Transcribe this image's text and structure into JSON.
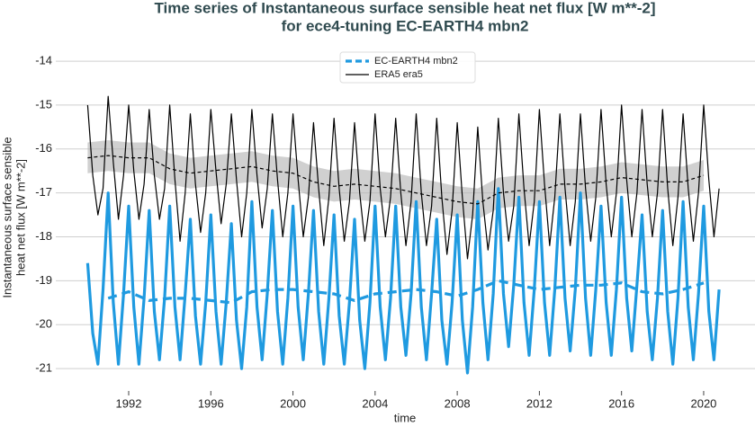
{
  "chart_data": {
    "type": "line",
    "title": [
      "Time series of Instantaneous surface sensible heat net flux [W m**-2]",
      "for ece4-tuning EC-EARTH4 mbn2"
    ],
    "xlabel": "time",
    "ylabel": [
      "Instantaneous surface sensible",
      "heat net flux [W m**-2]"
    ],
    "xlim": [
      1988.45,
      2022.5
    ],
    "ylim": [
      -21.51,
      -13.63
    ],
    "xticks": [
      1992,
      1996,
      2000,
      2004,
      2008,
      2012,
      2016,
      2020
    ],
    "yticks": [
      -21,
      -20,
      -19,
      -18,
      -17,
      -16,
      -15,
      -14
    ],
    "grid": true,
    "legend": "upper center",
    "x": [
      1990,
      1990.25,
      1990.5,
      1990.75,
      1991,
      1991.25,
      1991.5,
      1991.75,
      1992,
      1992.25,
      1992.5,
      1992.75,
      1993,
      1993.25,
      1993.5,
      1993.75,
      1994,
      1994.25,
      1994.5,
      1994.75,
      1995,
      1995.25,
      1995.5,
      1995.75,
      1996,
      1996.25,
      1996.5,
      1996.75,
      1997,
      1997.25,
      1997.5,
      1997.75,
      1998,
      1998.25,
      1998.5,
      1998.75,
      1999,
      1999.25,
      1999.5,
      1999.75,
      2000,
      2000.25,
      2000.5,
      2000.75,
      2001,
      2001.25,
      2001.5,
      2001.75,
      2002,
      2002.25,
      2002.5,
      2002.75,
      2003,
      2003.25,
      2003.5,
      2003.75,
      2004,
      2004.25,
      2004.5,
      2004.75,
      2005,
      2005.25,
      2005.5,
      2005.75,
      2006,
      2006.25,
      2006.5,
      2006.75,
      2007,
      2007.25,
      2007.5,
      2007.75,
      2008,
      2008.25,
      2008.5,
      2008.75,
      2009,
      2009.25,
      2009.5,
      2009.75,
      2010,
      2010.25,
      2010.5,
      2010.75,
      2011,
      2011.25,
      2011.5,
      2011.75,
      2012,
      2012.25,
      2012.5,
      2012.75,
      2013,
      2013.25,
      2013.5,
      2013.75,
      2014,
      2014.25,
      2014.5,
      2014.75,
      2015,
      2015.25,
      2015.5,
      2015.75,
      2016,
      2016.25,
      2016.5,
      2016.75,
      2017,
      2017.25,
      2017.5,
      2017.75,
      2018,
      2018.25,
      2018.5,
      2018.75,
      2019,
      2019.25,
      2019.5,
      2019.75,
      2020,
      2020.25,
      2020.5,
      2020.75
    ],
    "series": [
      {
        "name": "EC-EARTH4 mbn2",
        "color": "#1f9ae0",
        "width": 3.2,
        "legend_style": "dashed",
        "values": [
          -18.6,
          -20.2,
          -20.9,
          -19.2,
          -17.0,
          -19.5,
          -20.9,
          -19.3,
          -17.3,
          -19.6,
          -20.9,
          -19.4,
          -17.4,
          -19.7,
          -20.8,
          -19.4,
          -17.3,
          -19.6,
          -20.8,
          -19.3,
          -17.6,
          -19.8,
          -20.9,
          -19.5,
          -17.5,
          -19.7,
          -20.9,
          -19.5,
          -17.7,
          -19.9,
          -21.0,
          -19.6,
          -17.2,
          -19.6,
          -20.8,
          -19.3,
          -17.4,
          -19.7,
          -20.9,
          -19.4,
          -17.3,
          -19.6,
          -20.8,
          -19.3,
          -17.4,
          -19.7,
          -20.9,
          -19.4,
          -17.5,
          -19.8,
          -20.9,
          -19.5,
          -17.6,
          -19.9,
          -21.0,
          -19.5,
          -17.3,
          -19.6,
          -20.8,
          -19.4,
          -17.3,
          -19.6,
          -20.7,
          -19.3,
          -17.2,
          -19.6,
          -20.8,
          -19.3,
          -17.6,
          -19.9,
          -20.9,
          -19.5,
          -17.5,
          -19.9,
          -21.1,
          -19.6,
          -17.2,
          -19.5,
          -20.8,
          -19.3,
          -16.9,
          -19.3,
          -20.5,
          -19.1,
          -17.1,
          -19.5,
          -20.7,
          -19.2,
          -17.2,
          -19.5,
          -20.7,
          -19.2,
          -17.1,
          -19.4,
          -20.6,
          -19.2,
          -17.0,
          -19.4,
          -20.7,
          -19.2,
          -17.3,
          -19.5,
          -20.7,
          -19.2,
          -17.1,
          -19.4,
          -20.6,
          -19.1,
          -17.5,
          -19.7,
          -20.8,
          -19.4,
          -17.4,
          -19.7,
          -20.9,
          -19.4,
          -17.2,
          -19.6,
          -20.8,
          -19.3,
          -17.3,
          -19.7,
          -20.8,
          -19.2
        ],
        "mean": {
          "x": [
            1991,
            1992,
            1993,
            1994,
            1995,
            1996,
            1997,
            1998,
            1999,
            2000,
            2001,
            2002,
            2003,
            2004,
            2005,
            2006,
            2007,
            2008,
            2009,
            2010,
            2011,
            2012,
            2013,
            2014,
            2015,
            2016,
            2017,
            2018,
            2019,
            2020
          ],
          "values": [
            -19.4,
            -19.25,
            -19.45,
            -19.4,
            -19.4,
            -19.45,
            -19.5,
            -19.25,
            -19.2,
            -19.2,
            -19.25,
            -19.3,
            -19.45,
            -19.3,
            -19.25,
            -19.2,
            -19.25,
            -19.35,
            -19.2,
            -19.0,
            -19.1,
            -19.2,
            -19.15,
            -19.1,
            -19.1,
            -19.05,
            -19.25,
            -19.3,
            -19.2,
            -19.05
          ]
        }
      },
      {
        "name": "ERA5 era5",
        "color": "#000000",
        "width": 1.2,
        "legend_style": "solid",
        "values": [
          -15.0,
          -16.6,
          -17.5,
          -16.9,
          -14.8,
          -16.3,
          -17.6,
          -16.6,
          -15.0,
          -16.5,
          -17.6,
          -16.8,
          -15.1,
          -16.6,
          -17.6,
          -16.9,
          -15.0,
          -16.7,
          -18.1,
          -17.0,
          -15.2,
          -16.8,
          -17.9,
          -17.0,
          -15.1,
          -16.5,
          -17.7,
          -16.8,
          -15.2,
          -16.7,
          -18.0,
          -17.0,
          -15.1,
          -16.6,
          -17.8,
          -16.9,
          -15.2,
          -16.7,
          -18.0,
          -17.0,
          -15.2,
          -16.7,
          -18.0,
          -17.1,
          -15.4,
          -16.9,
          -18.2,
          -17.1,
          -15.3,
          -16.9,
          -18.1,
          -17.2,
          -15.4,
          -17.0,
          -18.1,
          -17.2,
          -15.2,
          -16.9,
          -18.0,
          -17.1,
          -15.3,
          -17.0,
          -18.2,
          -17.2,
          -15.2,
          -17.0,
          -18.2,
          -17.3,
          -15.3,
          -17.1,
          -18.4,
          -17.4,
          -15.4,
          -17.1,
          -18.5,
          -17.5,
          -15.5,
          -17.2,
          -18.3,
          -17.4,
          -15.3,
          -17.0,
          -18.1,
          -17.3,
          -15.2,
          -16.9,
          -18.2,
          -17.2,
          -15.1,
          -16.8,
          -18.2,
          -17.1,
          -15.2,
          -16.9,
          -18.2,
          -17.2,
          -15.2,
          -16.9,
          -18.1,
          -17.1,
          -15.1,
          -16.8,
          -18.0,
          -17.0,
          -15.0,
          -16.7,
          -18.0,
          -17.0,
          -15.1,
          -16.8,
          -18.0,
          -17.0,
          -15.1,
          -16.9,
          -18.2,
          -17.1,
          -15.2,
          -16.9,
          -18.1,
          -17.0,
          -15.0,
          -16.7,
          -18.0,
          -16.9
        ],
        "mean": {
          "x": [
            1990,
            1991,
            1992,
            1993,
            1994,
            1995,
            1996,
            1997,
            1998,
            1999,
            2000,
            2001,
            2002,
            2003,
            2004,
            2005,
            2006,
            2007,
            2008,
            2009,
            2010,
            2011,
            2012,
            2013,
            2014,
            2015,
            2016,
            2017,
            2018,
            2019,
            2020
          ],
          "values": [
            -16.2,
            -16.15,
            -16.2,
            -16.2,
            -16.45,
            -16.55,
            -16.5,
            -16.45,
            -16.4,
            -16.5,
            -16.55,
            -16.75,
            -16.85,
            -16.8,
            -16.85,
            -16.9,
            -17.0,
            -17.1,
            -17.2,
            -17.25,
            -17.0,
            -16.95,
            -16.95,
            -16.8,
            -16.8,
            -16.75,
            -16.65,
            -16.7,
            -16.75,
            -16.75,
            -16.6
          ],
          "lower": [
            -16.55,
            -16.5,
            -16.55,
            -16.55,
            -16.8,
            -16.9,
            -16.85,
            -16.8,
            -16.75,
            -16.85,
            -16.9,
            -17.1,
            -17.2,
            -17.15,
            -17.2,
            -17.25,
            -17.35,
            -17.45,
            -17.55,
            -17.6,
            -17.35,
            -17.3,
            -17.3,
            -17.15,
            -17.15,
            -17.1,
            -17.0,
            -17.05,
            -17.1,
            -17.1,
            -16.95
          ],
          "upper": [
            -15.85,
            -15.8,
            -15.85,
            -15.85,
            -16.1,
            -16.2,
            -16.15,
            -16.1,
            -16.05,
            -16.15,
            -16.2,
            -16.4,
            -16.5,
            -16.45,
            -16.5,
            -16.55,
            -16.65,
            -16.75,
            -16.85,
            -16.9,
            -16.65,
            -16.6,
            -16.6,
            -16.45,
            -16.45,
            -16.4,
            -16.3,
            -16.35,
            -16.4,
            -16.4,
            -16.25
          ]
        }
      }
    ]
  }
}
